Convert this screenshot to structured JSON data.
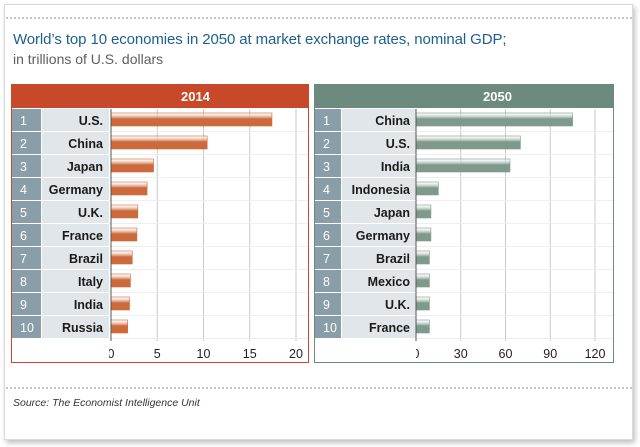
{
  "title": "World’s top 10 economies in 2050 at market exchange rates, nominal GDP;",
  "subtitle": "in trillions of U.S. dollars",
  "source_label": "Source:",
  "source_text": "The Economist Intelligence Unit",
  "colors": {
    "panel_2014": "#c8492a",
    "panel_2050": "#6d8a7f",
    "rank_cell": "#8a9eaa",
    "label_cell": "#e0e6ea",
    "bar_2014": "#cc6a3c",
    "bar_2050": "#7f9a8c"
  },
  "chart_data": [
    {
      "type": "bar",
      "title": "2014",
      "orientation": "horizontal",
      "ranks": [
        "1",
        "2",
        "3",
        "4",
        "5",
        "6",
        "7",
        "8",
        "9",
        "10"
      ],
      "categories": [
        "U.S.",
        "China",
        "Japan",
        "Germany",
        "U.K.",
        "France",
        "Brazil",
        "Italy",
        "India",
        "Russia"
      ],
      "values": [
        17.4,
        10.4,
        4.6,
        3.9,
        2.9,
        2.8,
        2.3,
        2.1,
        2.0,
        1.8
      ],
      "xlim": [
        0,
        20
      ],
      "xticks": [
        "0",
        "5",
        "10",
        "15",
        "20"
      ],
      "xlabel": "",
      "ylabel": "",
      "grid": true
    },
    {
      "type": "bar",
      "title": "2050",
      "orientation": "horizontal",
      "ranks": [
        "1",
        "2",
        "3",
        "4",
        "5",
        "6",
        "7",
        "8",
        "9",
        "10"
      ],
      "categories": [
        "China",
        "U.S.",
        "India",
        "Indonesia",
        "Japan",
        "Germany",
        "Brazil",
        "Mexico",
        "U.K.",
        "France"
      ],
      "values": [
        105,
        70,
        63,
        15,
        10,
        10,
        9,
        9,
        9,
        9
      ],
      "xlim": [
        0,
        120
      ],
      "xticks": [
        "0",
        "30",
        "60",
        "90",
        "120"
      ],
      "xlabel": "",
      "ylabel": "",
      "grid": true
    }
  ]
}
